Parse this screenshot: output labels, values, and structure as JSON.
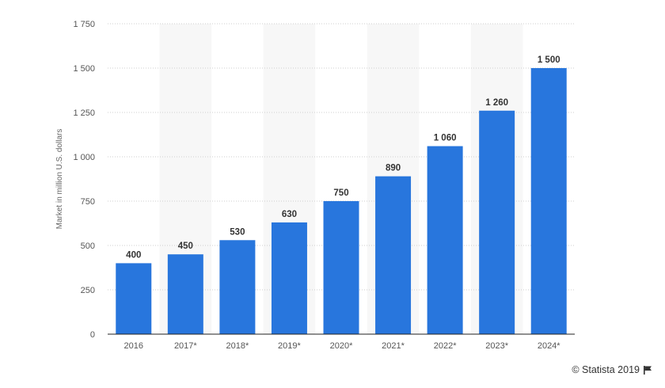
{
  "chart_data": {
    "type": "bar",
    "categories": [
      "2016",
      "2017*",
      "2018*",
      "2019*",
      "2020*",
      "2021*",
      "2022*",
      "2023*",
      "2024*"
    ],
    "values": [
      400,
      450,
      530,
      630,
      750,
      890,
      1060,
      1260,
      1500
    ],
    "value_labels": [
      "400",
      "450",
      "530",
      "630",
      "750",
      "890",
      "1 060",
      "1 260",
      "1 500"
    ],
    "ylabel": "Market in million U.S. dollars",
    "ylim": [
      0,
      1750
    ],
    "yticks": [
      0,
      250,
      500,
      750,
      1000,
      1250,
      1500,
      1750
    ],
    "ytick_labels": [
      "0",
      "250",
      "500",
      "750",
      "1 000",
      "1 250",
      "1 500",
      "1 750"
    ],
    "grid": true,
    "alternating_column_shading": true,
    "bar_color": "#2876dd",
    "shade_color": "#f7f7f7"
  },
  "credit": {
    "text": "© Statista 2019",
    "icon": "flag-icon"
  }
}
